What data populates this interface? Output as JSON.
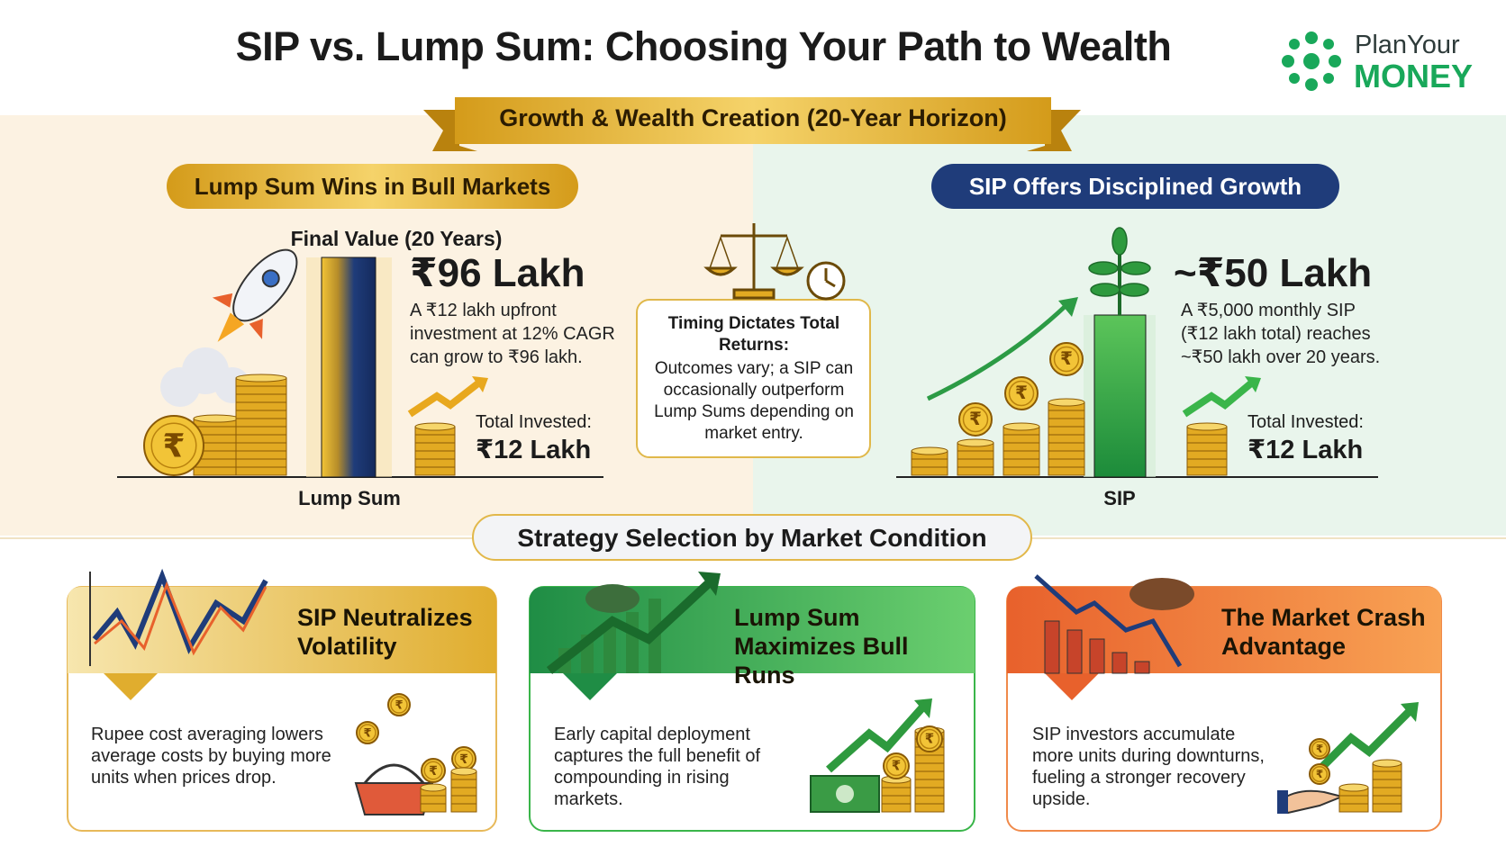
{
  "header": {
    "title": "SIP vs. Lump Sum: Choosing Your Path to Wealth",
    "brand_line1": "PlanYour",
    "brand_line2": "MONEY"
  },
  "banner": "Growth & Wealth Creation (20-Year Horizon)",
  "coin_symbol": "₹",
  "lump_sum": {
    "heading": "Lump Sum Wins in Bull Markets",
    "value_label": "Final Value (20 Years)",
    "value": "₹96 Lakh",
    "description": "A ₹12 lakh upfront investment at 12% CAGR can grow to ₹96 lakh.",
    "invested_label": "Total Invested:",
    "invested_value": "₹12 Lakh",
    "axis_label": "Lump Sum"
  },
  "center_note": {
    "title": "Timing Dictates Total Returns:",
    "text": "Outcomes vary; a SIP can occasionally outperform Lump Sums depending on market entry."
  },
  "sip": {
    "heading": "SIP Offers Disciplined Growth",
    "value": "~₹50 Lakh",
    "description": "A ₹5,000 monthly SIP (₹12 lakh total) reaches ~₹50 lakh over 20 years.",
    "invested_label": "Total Invested:",
    "invested_value": "₹12 Lakh",
    "axis_label": "SIP"
  },
  "section_title": "Strategy Selection by Market Condition",
  "cards": [
    {
      "title": "SIP Neutralizes Volatility",
      "text": "Rupee cost averaging lowers average costs by buying more units when prices drop."
    },
    {
      "title": "Lump Sum Maximizes Bull Runs",
      "text": "Early capital deployment captures the full benefit of compounding in rising markets."
    },
    {
      "title": "The Market Crash Advantage",
      "text": "SIP investors accumulate more units during downturns, fueling a stronger recovery upside."
    }
  ]
}
